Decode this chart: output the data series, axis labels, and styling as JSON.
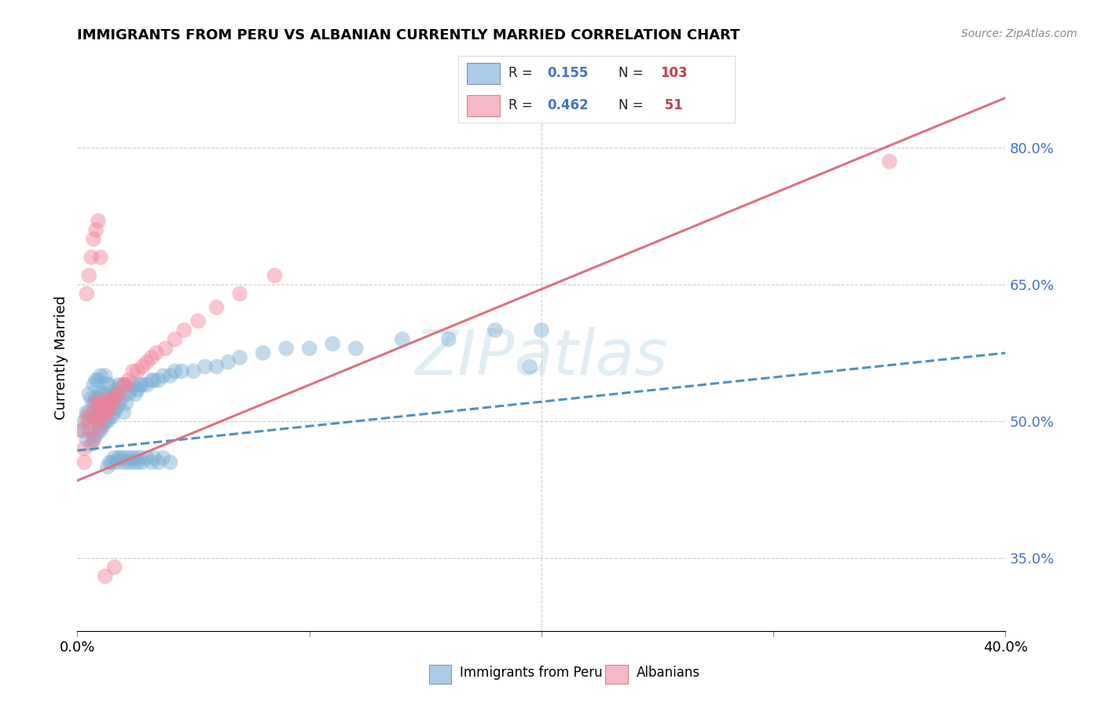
{
  "title": "IMMIGRANTS FROM PERU VS ALBANIAN CURRENTLY MARRIED CORRELATION CHART",
  "source": "Source: ZipAtlas.com",
  "ylabel": "Currently Married",
  "ytick_labels": [
    "80.0%",
    "65.0%",
    "50.0%",
    "35.0%"
  ],
  "ytick_values": [
    0.8,
    0.65,
    0.5,
    0.35
  ],
  "xlim": [
    0.0,
    0.4
  ],
  "ylim": [
    0.27,
    0.87
  ],
  "peru_color": "#7bafd4",
  "peru_edge": "#5b9fd4",
  "albanian_color": "#f08098",
  "albanian_edge": "#d06070",
  "peru_fill": "#aacce8",
  "albanian_fill": "#f4b8c8",
  "peru_line_color": "#5090c0",
  "albanian_line_color": "#e07080",
  "watermark": "ZIPatlas",
  "legend_r1": "0.155",
  "legend_n1": "103",
  "legend_r2": "0.462",
  "legend_n2": "51",
  "peru_line_x": [
    0.0,
    0.4
  ],
  "peru_line_y": [
    0.468,
    0.575
  ],
  "alb_line_x": [
    0.0,
    0.4
  ],
  "alb_line_y": [
    0.435,
    0.855
  ],
  "peru_x": [
    0.002,
    0.003,
    0.004,
    0.004,
    0.005,
    0.005,
    0.005,
    0.006,
    0.006,
    0.006,
    0.007,
    0.007,
    0.007,
    0.007,
    0.008,
    0.008,
    0.008,
    0.008,
    0.009,
    0.009,
    0.009,
    0.009,
    0.01,
    0.01,
    0.01,
    0.01,
    0.011,
    0.011,
    0.011,
    0.012,
    0.012,
    0.012,
    0.012,
    0.013,
    0.013,
    0.013,
    0.014,
    0.014,
    0.014,
    0.015,
    0.015,
    0.016,
    0.016,
    0.017,
    0.017,
    0.018,
    0.018,
    0.019,
    0.02,
    0.02,
    0.021,
    0.022,
    0.023,
    0.024,
    0.025,
    0.026,
    0.027,
    0.028,
    0.03,
    0.032,
    0.033,
    0.035,
    0.037,
    0.04,
    0.042,
    0.045,
    0.05,
    0.055,
    0.06,
    0.065,
    0.07,
    0.08,
    0.09,
    0.1,
    0.11,
    0.12,
    0.14,
    0.16,
    0.18,
    0.2,
    0.013,
    0.014,
    0.015,
    0.016,
    0.017,
    0.018,
    0.019,
    0.02,
    0.021,
    0.022,
    0.023,
    0.024,
    0.025,
    0.026,
    0.027,
    0.028,
    0.03,
    0.032,
    0.033,
    0.035,
    0.037,
    0.04,
    0.195
  ],
  "peru_y": [
    0.49,
    0.5,
    0.48,
    0.51,
    0.49,
    0.51,
    0.53,
    0.475,
    0.505,
    0.525,
    0.48,
    0.505,
    0.52,
    0.54,
    0.485,
    0.505,
    0.525,
    0.545,
    0.49,
    0.51,
    0.525,
    0.545,
    0.49,
    0.51,
    0.53,
    0.55,
    0.495,
    0.51,
    0.53,
    0.5,
    0.515,
    0.53,
    0.55,
    0.5,
    0.52,
    0.54,
    0.505,
    0.52,
    0.54,
    0.505,
    0.525,
    0.51,
    0.53,
    0.515,
    0.535,
    0.52,
    0.54,
    0.525,
    0.51,
    0.54,
    0.52,
    0.53,
    0.535,
    0.54,
    0.53,
    0.535,
    0.54,
    0.54,
    0.54,
    0.545,
    0.545,
    0.545,
    0.55,
    0.55,
    0.555,
    0.555,
    0.555,
    0.56,
    0.56,
    0.565,
    0.57,
    0.575,
    0.58,
    0.58,
    0.585,
    0.58,
    0.59,
    0.59,
    0.6,
    0.6,
    0.45,
    0.455,
    0.455,
    0.46,
    0.455,
    0.46,
    0.46,
    0.455,
    0.46,
    0.455,
    0.46,
    0.455,
    0.46,
    0.455,
    0.46,
    0.455,
    0.46,
    0.455,
    0.46,
    0.455,
    0.46,
    0.455,
    0.56
  ],
  "alb_x": [
    0.002,
    0.003,
    0.004,
    0.005,
    0.006,
    0.007,
    0.007,
    0.008,
    0.008,
    0.009,
    0.009,
    0.01,
    0.01,
    0.011,
    0.011,
    0.012,
    0.012,
    0.013,
    0.013,
    0.014,
    0.015,
    0.016,
    0.017,
    0.018,
    0.02,
    0.021,
    0.022,
    0.024,
    0.026,
    0.028,
    0.03,
    0.032,
    0.034,
    0.038,
    0.042,
    0.046,
    0.052,
    0.06,
    0.07,
    0.085,
    0.003,
    0.004,
    0.005,
    0.006,
    0.007,
    0.008,
    0.009,
    0.01,
    0.012,
    0.016,
    0.35
  ],
  "alb_y": [
    0.49,
    0.47,
    0.505,
    0.5,
    0.49,
    0.51,
    0.48,
    0.505,
    0.52,
    0.5,
    0.52,
    0.495,
    0.515,
    0.505,
    0.52,
    0.51,
    0.52,
    0.51,
    0.525,
    0.515,
    0.52,
    0.525,
    0.53,
    0.53,
    0.54,
    0.54,
    0.545,
    0.555,
    0.555,
    0.56,
    0.565,
    0.57,
    0.575,
    0.58,
    0.59,
    0.6,
    0.61,
    0.625,
    0.64,
    0.66,
    0.455,
    0.64,
    0.66,
    0.68,
    0.7,
    0.71,
    0.72,
    0.68,
    0.33,
    0.34,
    0.785
  ]
}
